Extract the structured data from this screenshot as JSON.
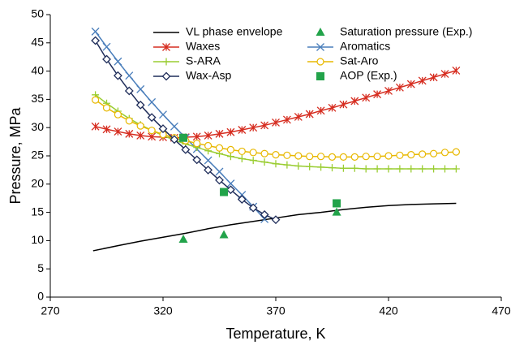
{
  "chart_data": {
    "type": "line",
    "xlabel": "Temperature, K",
    "ylabel": "Pressure, MPa",
    "xlim": [
      270,
      470
    ],
    "xticks": [
      270,
      320,
      370,
      420,
      470
    ],
    "ylim": [
      0,
      50
    ],
    "yticks": [
      0,
      5,
      10,
      15,
      20,
      25,
      30,
      35,
      40,
      45,
      50
    ],
    "grid": false,
    "legend": "top",
    "series": [
      {
        "name": "VL phase envelope",
        "color": "#000000",
        "marker": "none",
        "line": true,
        "x": [
          289,
          300,
          310,
          320,
          330,
          340,
          350,
          360,
          370,
          380,
          390,
          400,
          410,
          420,
          430,
          440,
          450
        ],
        "values": [
          8.2,
          9.1,
          9.9,
          10.6,
          11.3,
          12.1,
          12.8,
          13.4,
          14.0,
          14.6,
          15.0,
          15.5,
          15.9,
          16.2,
          16.4,
          16.5,
          16.6
        ]
      },
      {
        "name": "Saturation pressure (Exp.)",
        "color": "#22a34a",
        "marker": "triangle",
        "line": false,
        "x": [
          329,
          347,
          397
        ],
        "values": [
          10.2,
          11.0,
          15.0
        ]
      },
      {
        "name": "Waxes",
        "color": "#d62d20",
        "marker": "asterisk",
        "line": true,
        "x": [
          290,
          295,
          300,
          305,
          310,
          315,
          320,
          325,
          330,
          335,
          340,
          345,
          350,
          355,
          360,
          365,
          370,
          375,
          380,
          385,
          390,
          395,
          400,
          405,
          410,
          415,
          420,
          425,
          430,
          435,
          440,
          445,
          450
        ],
        "values": [
          30.2,
          29.7,
          29.3,
          28.9,
          28.6,
          28.4,
          28.3,
          28.2,
          28.3,
          28.4,
          28.6,
          28.9,
          29.2,
          29.6,
          30.0,
          30.4,
          30.9,
          31.4,
          31.9,
          32.4,
          33.0,
          33.5,
          34.1,
          34.7,
          35.3,
          35.9,
          36.5,
          37.1,
          37.7,
          38.3,
          38.9,
          39.5,
          40.1
        ]
      },
      {
        "name": "Aromatics",
        "color": "#4a7ebb",
        "marker": "x",
        "line": true,
        "x": [
          290,
          295,
          300,
          305,
          310,
          315,
          320,
          325,
          330,
          335,
          340,
          345,
          350,
          355,
          360,
          365
        ],
        "values": [
          47.0,
          44.3,
          41.7,
          39.2,
          36.8,
          34.5,
          32.3,
          30.2,
          28.2,
          26.2,
          24.2,
          22.2,
          20.1,
          18.1,
          16.0,
          13.8
        ]
      },
      {
        "name": "S-ARA",
        "color": "#9acd32",
        "marker": "plus",
        "line": true,
        "x": [
          290,
          295,
          300,
          305,
          310,
          315,
          320,
          325,
          330,
          335,
          340,
          345,
          350,
          355,
          360,
          365,
          370,
          375,
          380,
          385,
          390,
          395,
          400,
          405,
          410,
          415,
          420,
          425,
          430,
          435,
          440,
          445,
          450
        ],
        "values": [
          35.8,
          34.3,
          32.9,
          31.6,
          30.5,
          29.5,
          28.6,
          27.8,
          27.1,
          26.5,
          25.9,
          25.4,
          24.9,
          24.5,
          24.2,
          23.9,
          23.6,
          23.4,
          23.2,
          23.1,
          23.0,
          22.9,
          22.8,
          22.8,
          22.7,
          22.7,
          22.7,
          22.7,
          22.7,
          22.7,
          22.7,
          22.7,
          22.7
        ]
      },
      {
        "name": "Sat-Aro",
        "color": "#e8b800",
        "marker": "circle",
        "line": true,
        "x": [
          290,
          295,
          300,
          305,
          310,
          315,
          320,
          325,
          330,
          335,
          340,
          345,
          350,
          355,
          360,
          365,
          370,
          375,
          380,
          385,
          390,
          395,
          400,
          405,
          410,
          415,
          420,
          425,
          430,
          435,
          440,
          445,
          450
        ],
        "values": [
          34.9,
          33.5,
          32.3,
          31.2,
          30.3,
          29.5,
          28.8,
          28.2,
          27.7,
          27.2,
          26.8,
          26.4,
          26.1,
          25.8,
          25.6,
          25.4,
          25.2,
          25.1,
          25.0,
          24.9,
          24.9,
          24.8,
          24.8,
          24.8,
          24.9,
          24.9,
          25.0,
          25.1,
          25.2,
          25.3,
          25.4,
          25.6,
          25.7
        ]
      },
      {
        "name": "Wax-Asp",
        "color": "#1f2d5a",
        "marker": "diamond",
        "line": true,
        "x": [
          290,
          295,
          300,
          305,
          310,
          315,
          320,
          325,
          330,
          335,
          340,
          345,
          350,
          355,
          360,
          365,
          370
        ],
        "values": [
          45.4,
          42.1,
          39.2,
          36.5,
          34.0,
          31.8,
          29.8,
          27.9,
          26.1,
          24.3,
          22.5,
          20.7,
          19.0,
          17.3,
          15.8,
          14.6,
          13.7
        ]
      },
      {
        "name": "AOP (Exp.)",
        "color": "#22a34a",
        "marker": "square",
        "line": false,
        "x": [
          329,
          347,
          397
        ],
        "values": [
          28.2,
          18.6,
          16.6
        ]
      }
    ]
  }
}
